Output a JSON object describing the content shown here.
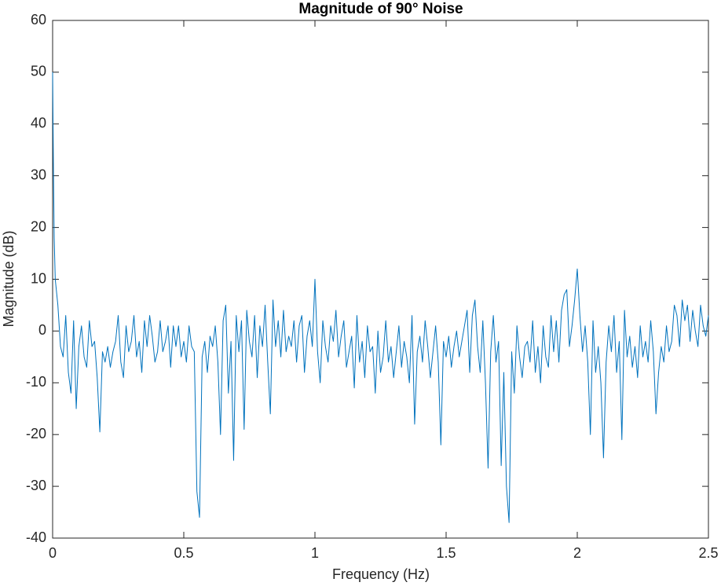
{
  "chart_data": {
    "type": "line",
    "title": "Magnitude of 90° Noise",
    "x_label": "Frequency (Hz)",
    "y_label": "Magnitude (dB)",
    "xlim": [
      0,
      2.5
    ],
    "xticks": [
      0,
      0.5,
      1,
      1.5,
      2,
      2.5
    ],
    "ylim": [
      -40,
      60
    ],
    "yticks": [
      -40,
      -30,
      -20,
      -10,
      0,
      10,
      20,
      30,
      40,
      50,
      60
    ],
    "grid": false,
    "x": [
      0,
      0.003,
      0.006,
      0.01,
      0.02,
      0.03,
      0.04,
      0.05,
      0.06,
      0.07,
      0.08,
      0.09,
      0.1,
      0.11,
      0.12,
      0.13,
      0.14,
      0.15,
      0.16,
      0.17,
      0.18,
      0.19,
      0.2,
      0.21,
      0.22,
      0.23,
      0.24,
      0.25,
      0.26,
      0.27,
      0.28,
      0.29,
      0.3,
      0.31,
      0.32,
      0.33,
      0.34,
      0.35,
      0.36,
      0.37,
      0.38,
      0.39,
      0.4,
      0.41,
      0.42,
      0.43,
      0.44,
      0.45,
      0.46,
      0.47,
      0.48,
      0.49,
      0.5,
      0.51,
      0.52,
      0.53,
      0.54,
      0.55,
      0.56,
      0.57,
      0.58,
      0.59,
      0.6,
      0.61,
      0.62,
      0.63,
      0.64,
      0.65,
      0.66,
      0.67,
      0.68,
      0.69,
      0.7,
      0.71,
      0.72,
      0.73,
      0.74,
      0.75,
      0.76,
      0.77,
      0.78,
      0.79,
      0.8,
      0.81,
      0.82,
      0.83,
      0.84,
      0.85,
      0.86,
      0.87,
      0.88,
      0.89,
      0.9,
      0.91,
      0.92,
      0.93,
      0.94,
      0.95,
      0.96,
      0.97,
      0.98,
      0.99,
      1.0,
      1.01,
      1.02,
      1.03,
      1.04,
      1.05,
      1.06,
      1.07,
      1.08,
      1.09,
      1.1,
      1.11,
      1.12,
      1.13,
      1.14,
      1.15,
      1.16,
      1.17,
      1.18,
      1.19,
      1.2,
      1.21,
      1.22,
      1.23,
      1.24,
      1.25,
      1.26,
      1.27,
      1.28,
      1.29,
      1.3,
      1.31,
      1.32,
      1.33,
      1.34,
      1.35,
      1.36,
      1.37,
      1.38,
      1.39,
      1.4,
      1.41,
      1.42,
      1.43,
      1.44,
      1.45,
      1.46,
      1.47,
      1.48,
      1.49,
      1.5,
      1.51,
      1.52,
      1.53,
      1.54,
      1.55,
      1.56,
      1.57,
      1.58,
      1.59,
      1.6,
      1.61,
      1.62,
      1.63,
      1.64,
      1.65,
      1.66,
      1.67,
      1.68,
      1.69,
      1.7,
      1.71,
      1.72,
      1.73,
      1.74,
      1.75,
      1.76,
      1.77,
      1.78,
      1.79,
      1.8,
      1.81,
      1.82,
      1.83,
      1.84,
      1.85,
      1.86,
      1.87,
      1.88,
      1.89,
      1.9,
      1.91,
      1.92,
      1.93,
      1.94,
      1.95,
      1.96,
      1.97,
      1.98,
      1.99,
      2.0,
      2.01,
      2.02,
      2.03,
      2.04,
      2.05,
      2.06,
      2.07,
      2.08,
      2.09,
      2.1,
      2.11,
      2.12,
      2.13,
      2.14,
      2.15,
      2.16,
      2.17,
      2.18,
      2.19,
      2.2,
      2.21,
      2.22,
      2.23,
      2.24,
      2.25,
      2.26,
      2.27,
      2.28,
      2.29,
      2.3,
      2.31,
      2.32,
      2.33,
      2.34,
      2.35,
      2.36,
      2.37,
      2.38,
      2.39,
      2.4,
      2.41,
      2.42,
      2.43,
      2.44,
      2.45,
      2.46,
      2.47,
      2.48,
      2.49,
      2.5
    ],
    "series": [
      {
        "color": "#0072bd",
        "values": [
          50,
          32,
          18,
          10,
          5,
          -3,
          -5,
          3,
          -8,
          -12,
          2,
          -15,
          -3,
          1,
          -5,
          -7,
          2,
          -3,
          -2,
          -9,
          -19.5,
          -4,
          -6,
          -3,
          -7,
          -4,
          -2,
          3,
          -6,
          -9,
          1,
          -4,
          -2,
          3,
          -5,
          -2,
          -8,
          2,
          -3,
          3,
          -1,
          -6,
          -4,
          2,
          -4,
          -2,
          1,
          -7,
          1,
          -3,
          1,
          -5,
          -2,
          -6,
          1,
          -3,
          -4,
          -31,
          -36,
          -5,
          -2,
          -8,
          -1,
          -3,
          1,
          -6,
          -20,
          2,
          5,
          -12,
          -2,
          -25,
          3,
          -4,
          2,
          -19,
          4,
          -2,
          -5,
          3,
          -9,
          1,
          -3,
          5,
          -6,
          -16,
          6,
          -3,
          2,
          -5,
          4,
          -4,
          -1,
          -3,
          2,
          -6,
          1,
          3,
          -8,
          -1,
          2,
          -3,
          10,
          -4,
          -10,
          2,
          -3,
          -6,
          1,
          -2,
          4,
          -5,
          -1,
          2,
          -7,
          -4,
          -1,
          -11,
          3,
          -6,
          -2,
          -9,
          1,
          -4,
          -3,
          -12,
          0,
          -8,
          -5,
          2,
          -6,
          -3,
          -9,
          -4,
          1,
          -7,
          -2,
          -5,
          -10,
          3,
          -18,
          -4,
          -1,
          -6,
          2,
          -3,
          -9,
          -4,
          1,
          -6,
          -22,
          -2,
          -5,
          -1,
          -7,
          -3,
          0,
          -5,
          -2,
          1,
          4,
          -8,
          3,
          6,
          -3,
          -8,
          2,
          -10,
          -26.5,
          -4,
          3,
          -6,
          -2,
          -26,
          -8,
          -30,
          -37,
          -4,
          -12,
          1,
          -5,
          -9,
          -3,
          -2,
          -6,
          2,
          -8,
          -3,
          -10,
          1,
          -5,
          -7,
          3,
          -4,
          2,
          -6,
          4,
          7,
          8,
          -3,
          1,
          6,
          12,
          3,
          -4,
          1,
          -6,
          -20,
          2,
          -8,
          -3,
          -10,
          -24.5,
          -6,
          1,
          -4,
          3,
          -8,
          -2,
          -21,
          4,
          -5,
          -1,
          -7,
          -3,
          -9,
          1,
          -5,
          -2,
          -6,
          2,
          -4,
          -16,
          -8,
          -3,
          -6,
          1,
          -4,
          -2,
          5,
          3,
          -3,
          6,
          2,
          5,
          -2,
          4,
          0,
          -3,
          5,
          1,
          -1,
          3
        ]
      }
    ]
  }
}
